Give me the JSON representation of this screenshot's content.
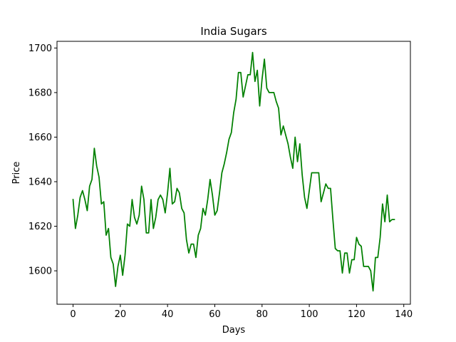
{
  "chart_data": {
    "type": "line",
    "title": "India Sugars",
    "xlabel": "Days",
    "ylabel": "Price",
    "xlim": [
      -6.8,
      142.8
    ],
    "ylim": [
      1585,
      1703
    ],
    "xticks": [
      0,
      20,
      40,
      60,
      80,
      100,
      120,
      140
    ],
    "yticks": [
      1600,
      1620,
      1640,
      1660,
      1680,
      1700
    ],
    "grid": false,
    "legend": "none",
    "series": [
      {
        "color": "#008000",
        "x": [
          0,
          1,
          2,
          3,
          4,
          5,
          6,
          7,
          8,
          9,
          10,
          11,
          12,
          13,
          14,
          15,
          16,
          17,
          18,
          19,
          20,
          21,
          22,
          23,
          24,
          25,
          26,
          27,
          28,
          29,
          30,
          31,
          32,
          33,
          34,
          35,
          36,
          37,
          38,
          39,
          40,
          41,
          42,
          43,
          44,
          45,
          46,
          47,
          48,
          49,
          50,
          51,
          52,
          53,
          54,
          55,
          56,
          57,
          58,
          59,
          60,
          61,
          62,
          63,
          64,
          65,
          66,
          67,
          68,
          69,
          70,
          71,
          72,
          73,
          74,
          75,
          76,
          77,
          78,
          79,
          80,
          81,
          82,
          83,
          84,
          85,
          86,
          87,
          88,
          89,
          90,
          91,
          92,
          93,
          94,
          95,
          96,
          97,
          98,
          99,
          100,
          101,
          102,
          103,
          104,
          105,
          106,
          107,
          108,
          109,
          110,
          111,
          112,
          113,
          114,
          115,
          116,
          117,
          118,
          119,
          120,
          121,
          122,
          123,
          124,
          125,
          126,
          127,
          128,
          129,
          130,
          131,
          132,
          133,
          134,
          135,
          136
        ],
        "y": [
          1632,
          1619,
          1625,
          1633,
          1636,
          1632,
          1627,
          1638,
          1641,
          1655,
          1647,
          1642,
          1630,
          1631,
          1616,
          1619,
          1606,
          1603,
          1593,
          1602,
          1607,
          1598,
          1607,
          1621,
          1620,
          1632,
          1624,
          1621,
          1625,
          1638,
          1632,
          1617,
          1617,
          1632,
          1619,
          1624,
          1632,
          1634,
          1632,
          1626,
          1635,
          1646,
          1630,
          1631,
          1637,
          1635,
          1628,
          1626,
          1614,
          1608,
          1612,
          1612,
          1606,
          1616,
          1619,
          1628,
          1625,
          1632,
          1641,
          1634,
          1625,
          1627,
          1635,
          1644,
          1648,
          1653,
          1659,
          1662,
          1671,
          1677,
          1689,
          1689,
          1678,
          1683,
          1688,
          1688,
          1698,
          1685,
          1690,
          1674,
          1686,
          1695,
          1682,
          1680,
          1680,
          1680,
          1676,
          1673,
          1661,
          1665,
          1661,
          1657,
          1651,
          1646,
          1660,
          1649,
          1657,
          1643,
          1633,
          1628,
          1636,
          1644,
          1644,
          1644,
          1644,
          1631,
          1635,
          1639,
          1637,
          1637,
          1623,
          1610,
          1609,
          1609,
          1599,
          1608,
          1608,
          1599,
          1605,
          1605,
          1615,
          1612,
          1611,
          1602,
          1602,
          1602,
          1600,
          1591,
          1606,
          1606,
          1615,
          1630,
          1622,
          1634,
          1622,
          1623,
          1623
        ]
      }
    ]
  }
}
